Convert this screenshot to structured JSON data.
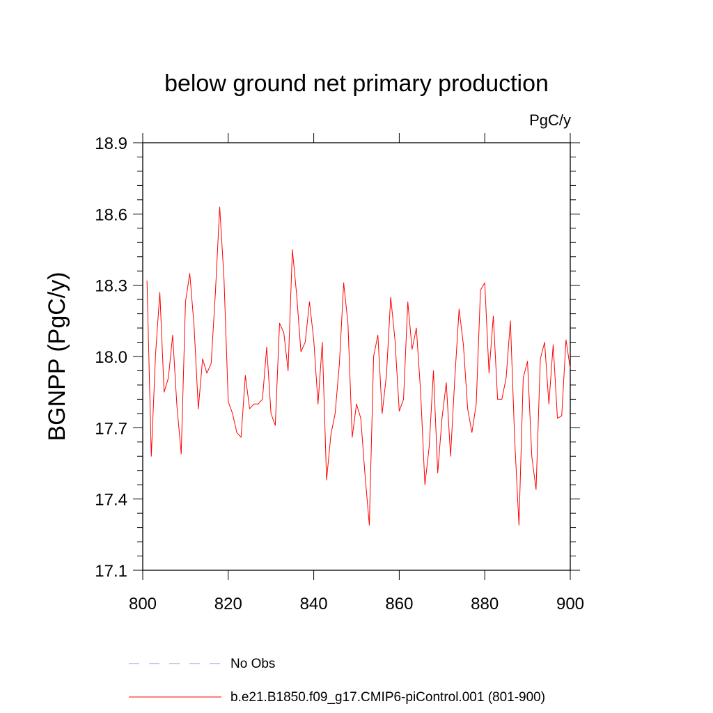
{
  "chart_data": {
    "type": "line",
    "title": "below ground net primary production",
    "units_label": "PgC/y",
    "ylabel": "BGNPP  (PgC/y)",
    "xlabel": "",
    "xlim": [
      800,
      900
    ],
    "ylim": [
      17.1,
      18.9
    ],
    "x_ticks": [
      800,
      820,
      840,
      860,
      880,
      900
    ],
    "x_tick_labels": [
      "800",
      "820",
      "840",
      "860",
      "880",
      "900"
    ],
    "y_ticks": [
      17.1,
      17.4,
      17.7,
      18.0,
      18.3,
      18.6,
      18.9
    ],
    "y_tick_labels": [
      "17.1",
      "17.4",
      "17.7",
      "18.0",
      "18.3",
      "18.6",
      "18.9"
    ],
    "grid": false,
    "legend_position": "bottom-left",
    "series": [
      {
        "name": "No Obs",
        "color": "#9a93d8",
        "style": "dashed",
        "x": [],
        "values": []
      },
      {
        "name": "b.e21.B1850.f09_g17.CMIP6-piControl.001 (801-900)",
        "color": "#ff0000",
        "style": "solid",
        "x": [
          801,
          802,
          803,
          804,
          805,
          806,
          807,
          808,
          809,
          810,
          811,
          812,
          813,
          814,
          815,
          816,
          817,
          818,
          819,
          820,
          821,
          822,
          823,
          824,
          825,
          826,
          827,
          828,
          829,
          830,
          831,
          832,
          833,
          834,
          835,
          836,
          837,
          838,
          839,
          840,
          841,
          842,
          843,
          844,
          845,
          846,
          847,
          848,
          849,
          850,
          851,
          852,
          853,
          854,
          855,
          856,
          857,
          858,
          859,
          860,
          861,
          862,
          863,
          864,
          865,
          866,
          867,
          868,
          869,
          870,
          871,
          872,
          873,
          874,
          875,
          876,
          877,
          878,
          879,
          880,
          881,
          882,
          883,
          884,
          885,
          886,
          887,
          888,
          889,
          890,
          891,
          892,
          893,
          894,
          895,
          896,
          897,
          898,
          899,
          900
        ],
        "values": [
          18.32,
          17.58,
          18.01,
          18.27,
          17.85,
          17.91,
          18.09,
          17.79,
          17.59,
          18.23,
          18.35,
          18.13,
          17.78,
          17.99,
          17.93,
          17.97,
          18.27,
          18.63,
          18.33,
          17.81,
          17.76,
          17.68,
          17.66,
          17.92,
          17.78,
          17.8,
          17.8,
          17.82,
          18.04,
          17.76,
          17.71,
          18.14,
          18.1,
          17.94,
          18.45,
          18.26,
          18.02,
          18.06,
          18.23,
          18.07,
          17.8,
          18.06,
          17.48,
          17.67,
          17.76,
          17.97,
          18.31,
          18.14,
          17.66,
          17.8,
          17.74,
          17.5,
          17.29,
          18.0,
          18.09,
          17.76,
          17.92,
          18.25,
          18.07,
          17.77,
          17.82,
          18.23,
          18.03,
          18.12,
          17.85,
          17.46,
          17.62,
          17.94,
          17.51,
          17.74,
          17.89,
          17.58,
          17.91,
          18.2,
          18.05,
          17.78,
          17.68,
          17.8,
          18.28,
          18.31,
          17.93,
          18.17,
          17.82,
          17.82,
          17.91,
          18.15,
          17.65,
          17.29,
          17.91,
          17.98,
          17.58,
          17.44,
          17.99,
          18.06,
          17.8,
          18.05,
          17.74,
          17.75,
          18.07,
          17.95
        ]
      }
    ]
  }
}
